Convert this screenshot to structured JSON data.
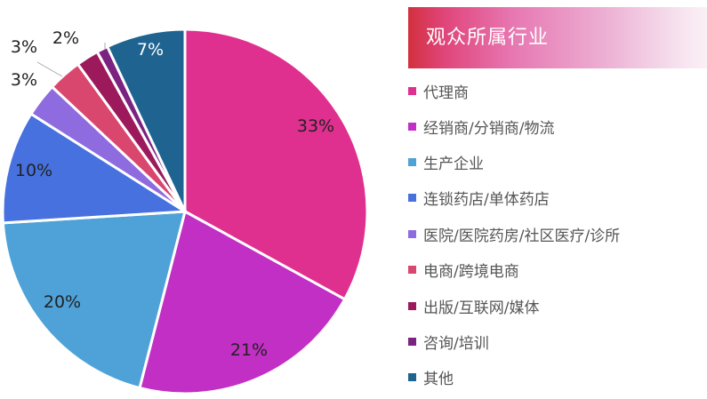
{
  "title": "观众所属行业",
  "chart_data": {
    "type": "pie",
    "title": "观众所属行业",
    "start_angle_deg": 0,
    "direction": "clockwise",
    "legend_position": "right",
    "categories": [
      "代理商",
      "经销商/分销商/物流",
      "生产企业",
      "连锁药店/单体药店",
      "医院/医院药房/社区医疗/诊所",
      "电商/跨境电商",
      "出版/互联网/媒体",
      "咨询/培训",
      "其他"
    ],
    "values": [
      33,
      21,
      20,
      10,
      3,
      3,
      2,
      1,
      7
    ],
    "labels": [
      "33%",
      "21%",
      "20%",
      "10%",
      "3%",
      "3%",
      "2%",
      "",
      "7%"
    ],
    "colors": [
      "#e0308f",
      "#c22fc4",
      "#4fa2d8",
      "#4671df",
      "#8e6ce0",
      "#d9476e",
      "#9c1a5c",
      "#7c2280",
      "#1f6490"
    ]
  },
  "legend": {
    "items": [
      {
        "label": "代理商",
        "color": "#e0308f"
      },
      {
        "label": "经销商/分销商/物流",
        "color": "#c22fc4"
      },
      {
        "label": "生产企业",
        "color": "#4fa2d8"
      },
      {
        "label": "连锁药店/单体药店",
        "color": "#4671df"
      },
      {
        "label": "医院/医院药房/社区医疗/诊所",
        "color": "#8e6ce0"
      },
      {
        "label": "电商/跨境电商",
        "color": "#d9476e"
      },
      {
        "label": "出版/互联网/媒体",
        "color": "#9c1a5c"
      },
      {
        "label": "咨询/培训",
        "color": "#7c2280"
      },
      {
        "label": "其他",
        "color": "#1f6490"
      }
    ]
  }
}
